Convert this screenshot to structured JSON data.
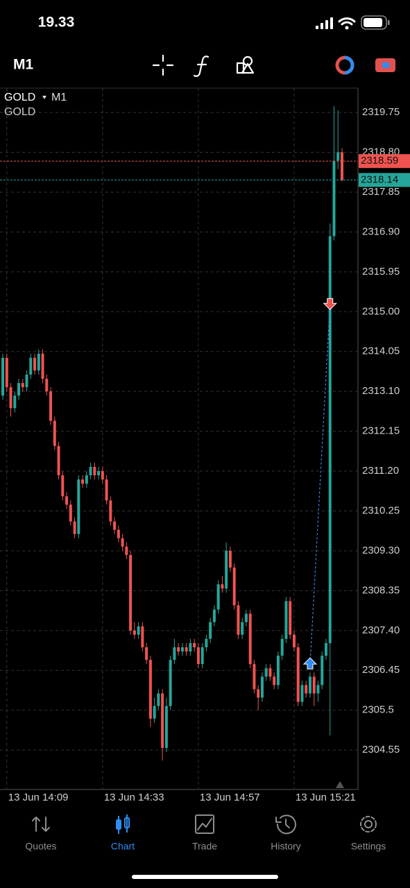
{
  "status_bar": {
    "time": "19.33"
  },
  "toolbar": {
    "timeframe": "M1"
  },
  "chart_data": {
    "type": "candlestick",
    "title": "GOLD",
    "timeframe": "M1",
    "subtitle": "GOLD",
    "open": [
      2313.0,
      2313.9,
      2313.2,
      2312.7,
      2313.0,
      2313.3,
      2313.2,
      2313.5,
      2313.9,
      2313.6,
      2314.0,
      2313.4,
      2313.1,
      2312.4,
      2311.8,
      2311.1,
      2310.6,
      2310.4,
      2310.0,
      2309.7,
      2311.0,
      2310.9,
      2311.1,
      2311.3,
      2311.1,
      2311.2,
      2311.0,
      2310.5,
      2310.0,
      2309.8,
      2309.6,
      2309.4,
      2309.2,
      2307.4,
      2307.3,
      2307.5,
      2307.0,
      2306.7,
      2305.3,
      2305.6,
      2305.9,
      2304.6,
      2305.6,
      2306.7,
      2307.0,
      2306.9,
      2307.0,
      2306.9,
      2307.1,
      2307.0,
      2306.6,
      2307.0,
      2307.2,
      2307.6,
      2307.9,
      2308.5,
      2308.4,
      2309.3,
      2308.9,
      2308.0,
      2307.3,
      2307.6,
      2307.8,
      2306.6,
      2306.0,
      2305.8,
      2306.3,
      2306.5,
      2306.3,
      2306.1,
      2306.8,
      2307.2,
      2308.1,
      2307.3,
      2307.0,
      2305.7,
      2306.1,
      2305.9,
      2306.3,
      2305.9,
      2306.1,
      2306.8,
      2307.1,
      2316.8,
      2318.6,
      2318.8
    ],
    "high": [
      2314.0,
      2314.0,
      2313.3,
      2313.1,
      2313.4,
      2313.4,
      2313.6,
      2314.0,
      2314.0,
      2314.1,
      2314.1,
      2313.5,
      2313.2,
      2312.5,
      2311.9,
      2311.2,
      2310.7,
      2310.5,
      2310.1,
      2311.1,
      2311.1,
      2311.2,
      2311.4,
      2311.4,
      2311.3,
      2311.3,
      2311.1,
      2310.6,
      2310.1,
      2309.9,
      2309.7,
      2309.5,
      2309.3,
      2307.6,
      2307.6,
      2307.6,
      2307.1,
      2306.8,
      2305.8,
      2306.0,
      2306.0,
      2305.8,
      2306.8,
      2307.2,
      2307.1,
      2307.1,
      2307.1,
      2307.2,
      2307.2,
      2307.1,
      2307.1,
      2307.3,
      2307.7,
      2308.0,
      2308.6,
      2308.7,
      2309.5,
      2309.4,
      2309.0,
      2308.1,
      2307.7,
      2307.9,
      2307.9,
      2306.7,
      2306.1,
      2306.4,
      2306.6,
      2306.6,
      2306.4,
      2306.9,
      2307.3,
      2308.2,
      2308.2,
      2307.4,
      2307.1,
      2306.2,
      2306.2,
      2306.4,
      2306.4,
      2306.2,
      2306.9,
      2307.2,
      2317.1,
      2319.9,
      2319.8,
      2318.9
    ],
    "low": [
      2312.9,
      2313.1,
      2312.5,
      2312.6,
      2312.9,
      2313.1,
      2313.1,
      2313.4,
      2313.5,
      2313.5,
      2313.3,
      2313.0,
      2312.3,
      2311.7,
      2311.0,
      2310.5,
      2310.3,
      2309.9,
      2309.6,
      2309.6,
      2310.8,
      2310.8,
      2311.0,
      2311.0,
      2311.0,
      2310.9,
      2310.4,
      2309.9,
      2309.7,
      2309.5,
      2309.3,
      2309.1,
      2307.3,
      2307.2,
      2307.2,
      2306.9,
      2306.6,
      2305.1,
      2305.2,
      2305.5,
      2304.3,
      2304.5,
      2305.5,
      2306.6,
      2306.8,
      2306.8,
      2306.8,
      2306.8,
      2306.9,
      2306.5,
      2306.5,
      2306.9,
      2307.1,
      2307.5,
      2307.8,
      2308.3,
      2308.3,
      2308.8,
      2307.9,
      2307.2,
      2307.2,
      2307.5,
      2306.5,
      2305.9,
      2305.5,
      2305.7,
      2306.2,
      2306.2,
      2306.0,
      2306.0,
      2306.7,
      2307.1,
      2307.2,
      2306.9,
      2305.6,
      2305.6,
      2305.8,
      2305.8,
      2305.6,
      2305.7,
      2306.0,
      2306.7,
      2304.9,
      2316.7,
      2318.4,
      2318.1
    ],
    "close": [
      2313.9,
      2313.2,
      2312.7,
      2313.0,
      2313.3,
      2313.2,
      2313.5,
      2313.9,
      2313.6,
      2314.0,
      2313.4,
      2313.1,
      2312.4,
      2311.8,
      2311.1,
      2310.6,
      2310.4,
      2310.0,
      2309.7,
      2311.0,
      2310.9,
      2311.1,
      2311.3,
      2311.1,
      2311.2,
      2311.0,
      2310.5,
      2310.0,
      2309.8,
      2309.6,
      2309.4,
      2309.2,
      2307.4,
      2307.3,
      2307.5,
      2307.0,
      2306.7,
      2305.3,
      2305.6,
      2305.9,
      2304.6,
      2305.6,
      2306.7,
      2307.0,
      2306.9,
      2307.0,
      2306.9,
      2307.1,
      2307.0,
      2306.6,
      2307.0,
      2307.2,
      2307.6,
      2307.9,
      2308.5,
      2308.4,
      2309.3,
      2308.9,
      2308.0,
      2307.3,
      2307.6,
      2307.8,
      2306.6,
      2306.0,
      2305.8,
      2306.3,
      2306.5,
      2306.3,
      2306.1,
      2306.8,
      2307.2,
      2308.1,
      2307.3,
      2307.0,
      2305.7,
      2306.1,
      2305.9,
      2306.3,
      2305.9,
      2306.1,
      2306.8,
      2307.1,
      2316.8,
      2318.6,
      2318.8,
      2318.14
    ],
    "up_color": "#26a69a",
    "down_color": "#ef5350",
    "ylim": [
      2303.61,
      2320.33
    ],
    "yticks": [
      2319.75,
      {
        "value": 2318.8,
        "label": "2318.80"
      },
      2317.85,
      {
        "value": 2316.9,
        "label": "2316.90"
      },
      2315.95,
      {
        "value": 2315,
        "label": "2315.00"
      },
      2314.05,
      {
        "value": 2313.1,
        "label": "2313.10"
      },
      2312.15,
      {
        "value": 2311.2,
        "label": "2311.20"
      },
      2310.25,
      {
        "value": 2309.3,
        "label": "2309.30"
      },
      2308.35,
      {
        "value": 2307.4,
        "label": "2307.40"
      },
      2306.45,
      2305.5,
      2304.55
    ],
    "xlim": [
      -0.7,
      89
    ],
    "xticks": [
      {
        "value": 1,
        "label": "13 Jun 14:09"
      },
      {
        "value": 25,
        "label": "13 Jun 14:33"
      },
      {
        "value": 49,
        "label": "13 Jun 14:57"
      },
      {
        "value": 73,
        "label": "13 Jun 15:21"
      }
    ],
    "grid": true,
    "bid": 2318.14,
    "bid_color": "#26a69a",
    "ask": 2318.59,
    "ask_color": "#ef5350",
    "trades": [
      {
        "type": "buy",
        "x": 77,
        "price": 2306.6,
        "color": "#2f8cf0"
      },
      {
        "type": "sell",
        "x": 82,
        "price": 2315.2,
        "color": "#ef5350"
      }
    ]
  },
  "tab_bar": {
    "tabs": [
      "Quotes",
      "Chart",
      "Trade",
      "History",
      "Settings"
    ],
    "active": 1
  }
}
